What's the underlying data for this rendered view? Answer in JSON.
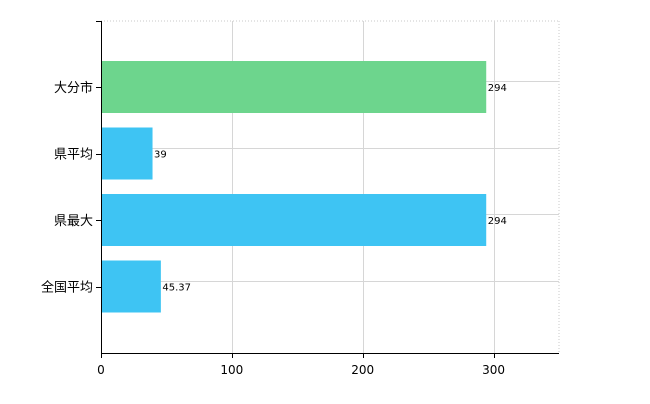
{
  "chart_data": {
    "type": "bar",
    "orientation": "horizontal",
    "categories": [
      "大分市",
      "県平均",
      "県最大",
      "全国平均"
    ],
    "values": [
      294,
      39,
      294,
      45.37
    ],
    "value_labels": [
      "294",
      "39",
      "294",
      "45.37"
    ],
    "bar_colors": [
      "#6dd58d",
      "#3ec4f3",
      "#3ec4f3",
      "#3ec4f3"
    ],
    "xlim": [
      0,
      350
    ],
    "x_ticks": [
      0,
      100,
      200,
      300
    ],
    "x_tick_labels": [
      "0",
      "100",
      "200",
      "300"
    ],
    "grid": true,
    "legend": "none",
    "title": "",
    "xlabel": "",
    "ylabel": ""
  }
}
